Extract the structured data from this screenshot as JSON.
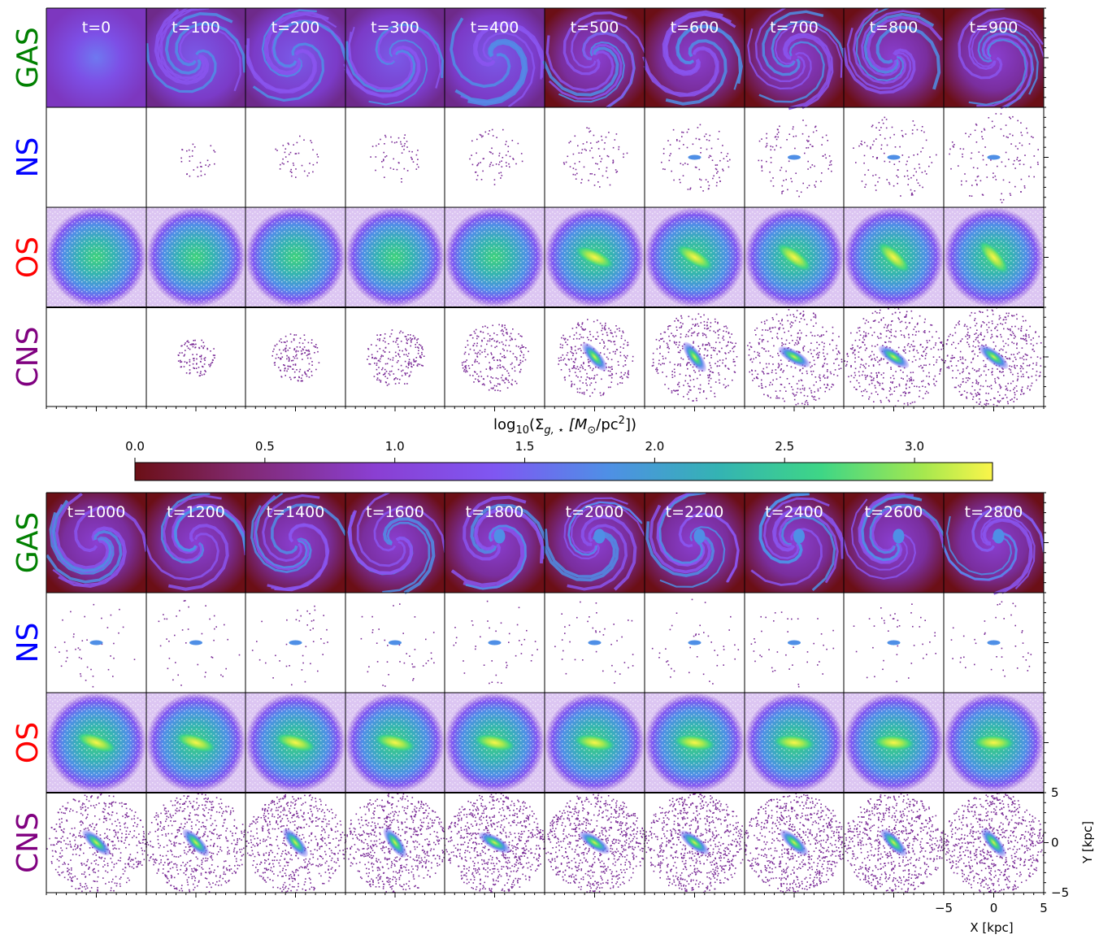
{
  "chart_data": {
    "type": "heatmap",
    "title": "",
    "rows": [
      {
        "label": "GAS",
        "color": "#008000"
      },
      {
        "label": "NS",
        "color": "#0000ff"
      },
      {
        "label": "OS",
        "color": "#ff0000"
      },
      {
        "label": "CNS",
        "color": "#800080"
      }
    ],
    "time_blocks": [
      {
        "times": [
          "t=0",
          "t=100",
          "t=200",
          "t=300",
          "t=400",
          "t=500",
          "t=600",
          "t=700",
          "t=800",
          "t=900"
        ]
      },
      {
        "times": [
          "t=1000",
          "t=1200",
          "t=1400",
          "t=1600",
          "t=1800",
          "t=2000",
          "t=2200",
          "t=2400",
          "t=2600",
          "t=2800"
        ]
      }
    ],
    "colorbar": {
      "label_prefix": "log",
      "label_sub": "10",
      "label_rest": "(Σ",
      "label_sub2": "g, ⋆",
      "label_units": " [M",
      "label_sun": "⊙",
      "label_units2": "/pc",
      "label_sup": "2",
      "label_end": "])",
      "range": [
        0.0,
        3.3
      ],
      "ticks": [
        "0.0",
        "0.5",
        "1.0",
        "1.5",
        "2.0",
        "2.5",
        "3.0"
      ],
      "tick_values": [
        0.0,
        0.5,
        1.0,
        1.5,
        2.0,
        2.5,
        3.0
      ],
      "colormap": "gas",
      "colors": [
        "#6b0f16",
        "#81286d",
        "#8a3fd2",
        "#7f57f2",
        "#4f8fe6",
        "#34b3b3",
        "#3ed686",
        "#a6e84e",
        "#fbf54a"
      ]
    },
    "xaxis": {
      "label": "X [kpc]",
      "ticks": [
        "−5",
        "0",
        "5"
      ],
      "tick_values": [
        -5,
        0,
        5
      ],
      "range": [
        -5,
        5
      ]
    },
    "yaxis": {
      "label": "Y [kpc]",
      "ticks": [
        "5",
        "0",
        "−5"
      ],
      "tick_values": [
        5,
        0,
        -5
      ],
      "range": [
        -5,
        5
      ]
    },
    "bar_angles_deg_note": "",
    "panel_features": {
      "gas_bar_visible_from_index": 5,
      "stellar_bar_visible_from_index": 5
    }
  }
}
